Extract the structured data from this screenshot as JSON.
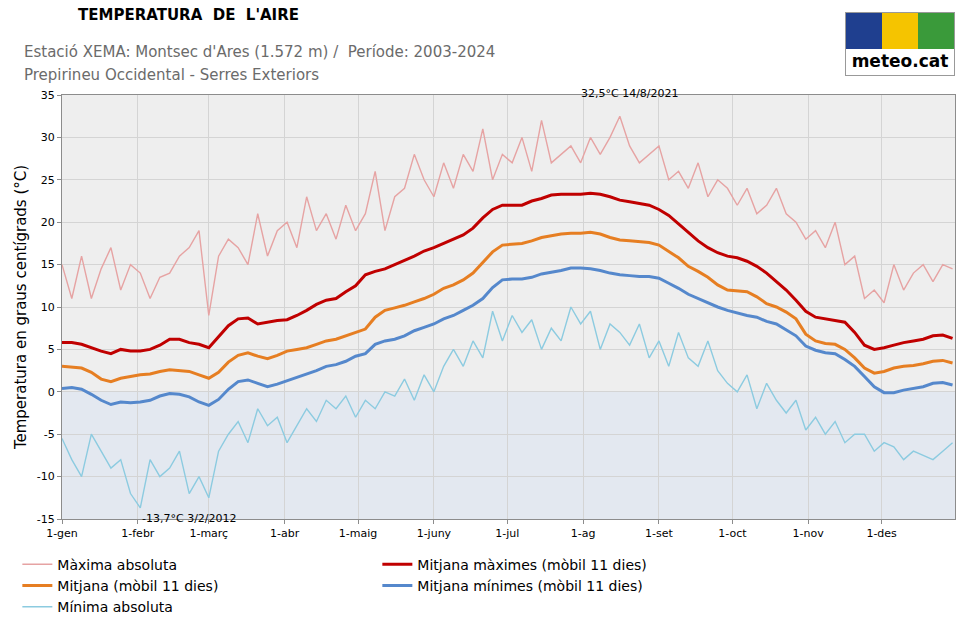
{
  "chart_data": {
    "type": "line",
    "title": "TEMPERATURA  DE  L'AIRE",
    "subtitle": [
      "Estació XEMA: Montsec d'Ares (1.572 m) /  Període: 2003-2024",
      "Prepirineu Occidental - Serres Exteriors"
    ],
    "logo": "meteo.cat",
    "y_label": "Temperatura en graus centígrads (°C)",
    "grid": true,
    "legend": "bottom",
    "xlim": [
      1,
      366
    ],
    "xticks": [
      {
        "value": 1,
        "label": "1-gen"
      },
      {
        "value": 32,
        "label": "1-febr"
      },
      {
        "value": 61,
        "label": "1-març"
      },
      {
        "value": 92,
        "label": "1-abr"
      },
      {
        "value": 122,
        "label": "1-maig"
      },
      {
        "value": 153,
        "label": "1-juny"
      },
      {
        "value": 183,
        "label": "1-jul"
      },
      {
        "value": 214,
        "label": "1-ag"
      },
      {
        "value": 245,
        "label": "1-set"
      },
      {
        "value": 275,
        "label": "1-oct"
      },
      {
        "value": 306,
        "label": "1-nov"
      },
      {
        "value": 336,
        "label": "1-des"
      }
    ],
    "ylim": [
      -15,
      35
    ],
    "yticks": [
      -15,
      -10,
      -5,
      0,
      5,
      10,
      15,
      20,
      25,
      30,
      35
    ],
    "x": [
      1,
      5,
      9,
      13,
      17,
      21,
      25,
      29,
      33,
      37,
      41,
      45,
      49,
      53,
      57,
      61,
      65,
      69,
      73,
      77,
      81,
      85,
      89,
      93,
      97,
      101,
      105,
      109,
      113,
      117,
      121,
      125,
      129,
      133,
      137,
      141,
      145,
      149,
      153,
      157,
      161,
      165,
      169,
      173,
      177,
      181,
      185,
      189,
      193,
      197,
      201,
      205,
      209,
      213,
      217,
      221,
      225,
      229,
      233,
      237,
      241,
      245,
      249,
      253,
      257,
      261,
      265,
      269,
      273,
      277,
      281,
      285,
      289,
      293,
      297,
      301,
      305,
      309,
      313,
      317,
      321,
      325,
      329,
      333,
      337,
      341,
      345,
      349,
      353,
      357,
      361,
      365
    ],
    "series": [
      {
        "name": "Màxima absoluta",
        "color": "#e6a3a3",
        "line_style": "thin",
        "values": [
          15,
          11,
          16,
          11,
          14.5,
          17,
          12,
          15,
          14,
          11,
          13.5,
          14,
          16,
          17,
          19,
          9,
          16,
          18,
          17,
          15,
          21,
          16,
          19,
          20,
          17,
          23,
          19,
          21,
          18,
          22,
          19,
          21,
          26,
          19,
          23,
          24,
          28,
          25,
          23,
          27,
          24,
          28,
          26,
          31,
          25,
          28,
          27,
          30,
          26,
          32,
          27,
          28,
          29,
          27,
          30,
          28,
          30,
          32.5,
          29,
          27,
          28,
          29,
          25,
          26,
          24,
          27,
          23,
          25,
          24,
          22,
          24,
          21,
          22,
          24,
          21,
          20,
          18,
          19,
          17,
          20,
          15,
          16,
          11,
          12,
          10.5,
          15,
          12,
          14,
          15,
          13,
          15,
          14.5
        ]
      },
      {
        "name": "Mitjana màximes (mòbil 11 dies)",
        "color": "#c00000",
        "line_style": "thick",
        "values": [
          5.8,
          5.8,
          5.6,
          5.2,
          4.8,
          4.5,
          5.0,
          4.8,
          4.8,
          5.0,
          5.5,
          6.2,
          6.2,
          5.8,
          5.6,
          5.2,
          6.5,
          7.8,
          8.6,
          8.7,
          8.0,
          8.2,
          8.4,
          8.5,
          9.0,
          9.6,
          10.3,
          10.8,
          11.0,
          11.8,
          12.5,
          13.8,
          14.2,
          14.5,
          15.0,
          15.5,
          16.0,
          16.6,
          17.0,
          17.5,
          18.0,
          18.5,
          19.3,
          20.5,
          21.5,
          22.0,
          22.0,
          22.0,
          22.5,
          22.8,
          23.2,
          23.3,
          23.3,
          23.3,
          23.4,
          23.3,
          23.0,
          22.6,
          22.4,
          22.2,
          22.0,
          21.5,
          20.8,
          19.8,
          18.8,
          17.8,
          17.0,
          16.4,
          16.0,
          15.8,
          15.4,
          14.8,
          14.0,
          13.0,
          12.0,
          10.8,
          9.5,
          8.8,
          8.6,
          8.4,
          8.2,
          7.0,
          5.5,
          5.0,
          5.2,
          5.5,
          5.8,
          6.0,
          6.2,
          6.6,
          6.7,
          6.3
        ]
      },
      {
        "name": "Mitjana (mòbil 11 dies)",
        "color": "#e67e22",
        "line_style": "thick",
        "values": [
          3.0,
          2.9,
          2.8,
          2.3,
          1.5,
          1.2,
          1.6,
          1.8,
          2.0,
          2.1,
          2.4,
          2.6,
          2.5,
          2.4,
          2.0,
          1.6,
          2.3,
          3.5,
          4.3,
          4.6,
          4.2,
          3.9,
          4.3,
          4.8,
          5.0,
          5.2,
          5.6,
          6.0,
          6.2,
          6.6,
          7.0,
          7.4,
          8.8,
          9.6,
          9.9,
          10.2,
          10.6,
          11.0,
          11.5,
          12.2,
          12.6,
          13.2,
          14.0,
          15.2,
          16.5,
          17.3,
          17.4,
          17.5,
          17.8,
          18.2,
          18.4,
          18.6,
          18.7,
          18.7,
          18.8,
          18.6,
          18.2,
          17.9,
          17.8,
          17.7,
          17.6,
          17.3,
          16.6,
          15.8,
          14.8,
          14.2,
          13.5,
          12.6,
          12.0,
          11.9,
          11.8,
          11.2,
          10.4,
          10.0,
          9.4,
          8.6,
          6.8,
          6.0,
          5.7,
          5.6,
          5.0,
          4.0,
          2.8,
          2.2,
          2.4,
          2.8,
          3.0,
          3.1,
          3.3,
          3.6,
          3.7,
          3.4
        ]
      },
      {
        "name": "Mitjana mínimes (mòbil 11 dies)",
        "color": "#5588cc",
        "line_style": "thick",
        "values": [
          0.4,
          0.5,
          0.3,
          -0.3,
          -1.0,
          -1.5,
          -1.2,
          -1.3,
          -1.2,
          -1.0,
          -0.5,
          -0.2,
          -0.3,
          -0.6,
          -1.2,
          -1.6,
          -0.9,
          0.3,
          1.2,
          1.4,
          1.0,
          0.6,
          0.9,
          1.3,
          1.7,
          2.1,
          2.5,
          3.0,
          3.2,
          3.6,
          4.2,
          4.5,
          5.6,
          6.0,
          6.2,
          6.6,
          7.2,
          7.6,
          8.0,
          8.6,
          9.0,
          9.6,
          10.2,
          11.0,
          12.3,
          13.2,
          13.3,
          13.3,
          13.5,
          13.9,
          14.1,
          14.3,
          14.6,
          14.6,
          14.5,
          14.3,
          14.0,
          13.8,
          13.7,
          13.6,
          13.6,
          13.4,
          12.8,
          12.2,
          11.5,
          11.0,
          10.5,
          10.0,
          9.6,
          9.3,
          9.0,
          8.8,
          8.3,
          8.0,
          7.3,
          6.6,
          5.4,
          4.9,
          4.6,
          4.5,
          3.8,
          3.0,
          1.8,
          0.6,
          -0.1,
          -0.1,
          0.2,
          0.4,
          0.6,
          1.0,
          1.1,
          0.8
        ]
      },
      {
        "name": "Mínima absoluta",
        "color": "#8ccbe0",
        "line_style": "thin",
        "values": [
          -5.5,
          -8,
          -10,
          -5,
          -7,
          -9,
          -8,
          -12,
          -13.7,
          -8,
          -10,
          -9,
          -7,
          -12,
          -10,
          -12.5,
          -7,
          -5,
          -3.5,
          -6,
          -2,
          -4,
          -3,
          -6,
          -4,
          -2,
          -3.5,
          -1,
          -2,
          -0.5,
          -3,
          -1,
          -2,
          0,
          -0.5,
          1.5,
          -1,
          2,
          0,
          3,
          5,
          3,
          6,
          4,
          9.5,
          6,
          9,
          7,
          8.5,
          5,
          7.5,
          6,
          10,
          8,
          9.5,
          5,
          8,
          7,
          5.5,
          8,
          4,
          6,
          3,
          7,
          4,
          3,
          6,
          2.5,
          1,
          0,
          2,
          -2,
          1,
          -1,
          -2.5,
          -1,
          -4.5,
          -3,
          -5,
          -3.5,
          -6,
          -5,
          -5,
          -7,
          -6,
          -6.5,
          -8,
          -7,
          -7.5,
          -8,
          -7,
          -6
        ]
      }
    ],
    "annotations": [
      {
        "x": 229,
        "y": 32.5,
        "text": "32,5°C 14/8/2021"
      },
      {
        "x": 33,
        "y": -13.7,
        "text": "-13,7°C 3/2/2012"
      }
    ]
  }
}
